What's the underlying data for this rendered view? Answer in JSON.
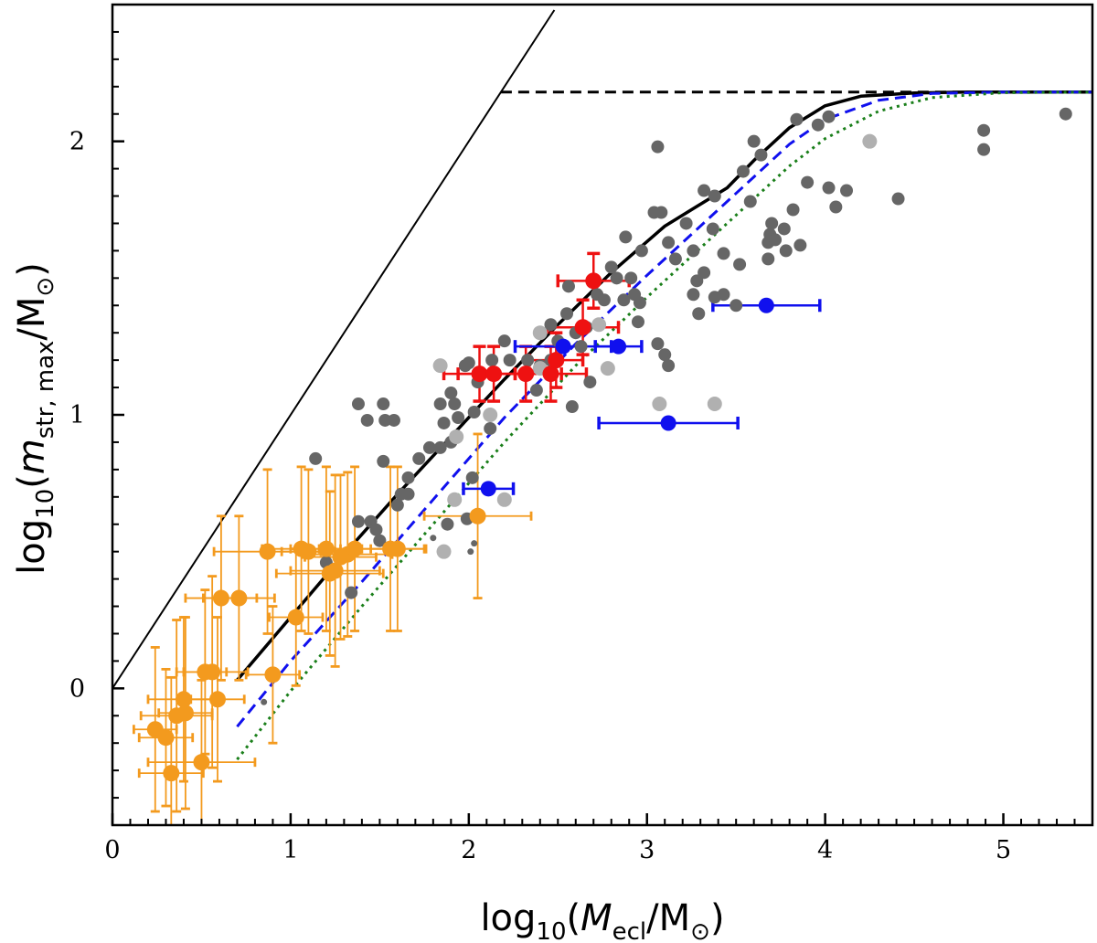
{
  "chart_data": {
    "type": "scatter",
    "title": "",
    "xlabel": {
      "prefix": "log",
      "sub": "10",
      "open": "(",
      "var": "M",
      "varsub": "ecl",
      "slash": "/M",
      "sun": "⊙",
      "close": ")"
    },
    "ylabel": {
      "prefix": "log",
      "sub": "10",
      "open": "(",
      "var": "m",
      "varsub": "str, max",
      "slash": "/M",
      "sun": "⊙",
      "close": ")"
    },
    "xlim": [
      0,
      5.5
    ],
    "ylim": [
      -0.5,
      2.5
    ],
    "xticks": [
      0,
      1,
      2,
      3,
      4,
      5
    ],
    "yticks": [
      0,
      1,
      2
    ],
    "x_minor_step": 0.1,
    "y_minor_step": 0.1,
    "grid": false,
    "legend": "none",
    "colors": {
      "orange": "#f39a1e",
      "red": "#ee1111",
      "blue": "#1010ee",
      "darkgray": "#666666",
      "lightgray": "#b0b0b0",
      "green": "#1a7f1a",
      "black": "#000000"
    },
    "lines": [
      {
        "style": "solid-thin",
        "color": "#000000",
        "x": [
          0,
          2.48
        ],
        "y": [
          0,
          2.48
        ]
      },
      {
        "style": "dashed",
        "color": "#000000",
        "x": [
          2.18,
          5.5
        ],
        "y": [
          2.18,
          2.18
        ]
      },
      {
        "style": "solid-thick",
        "color": "#000000",
        "x": [
          0.7,
          1.0,
          1.3,
          1.6,
          1.9,
          2.2,
          2.5,
          2.8,
          3.1,
          3.3,
          3.45,
          3.6,
          3.8,
          4.0,
          4.2,
          4.5,
          4.8,
          5.1,
          5.5
        ],
        "y": [
          0.03,
          0.26,
          0.49,
          0.71,
          0.92,
          1.13,
          1.33,
          1.52,
          1.69,
          1.77,
          1.83,
          1.93,
          2.05,
          2.13,
          2.165,
          2.177,
          2.18,
          2.18,
          2.18
        ]
      },
      {
        "style": "dashed",
        "color": "#1010ee",
        "x": [
          0.7,
          1.0,
          1.4,
          1.8,
          2.2,
          2.6,
          3.0,
          3.4,
          3.6,
          3.8,
          4.0,
          4.3,
          4.6,
          5.0,
          5.5
        ],
        "y": [
          -0.14,
          0.1,
          0.39,
          0.69,
          0.99,
          1.26,
          1.51,
          1.75,
          1.87,
          1.99,
          2.08,
          2.15,
          2.175,
          2.18,
          2.18
        ]
      },
      {
        "style": "dotted",
        "color": "#1a7f1a",
        "x": [
          0.7,
          1.0,
          1.4,
          1.8,
          2.2,
          2.6,
          3.0,
          3.4,
          3.6,
          3.8,
          4.0,
          4.3,
          4.6,
          5.0,
          5.5
        ],
        "y": [
          -0.26,
          -0.01,
          0.3,
          0.6,
          0.9,
          1.18,
          1.43,
          1.67,
          1.79,
          1.91,
          2.01,
          2.11,
          2.16,
          2.178,
          2.18
        ]
      }
    ],
    "series": [
      {
        "marker": "darkgray",
        "points": [
          [
            1.14,
            0.84
          ],
          [
            1.38,
            1.04
          ],
          [
            1.43,
            0.98
          ],
          [
            1.53,
            0.98
          ],
          [
            1.52,
            1.04
          ],
          [
            1.58,
            0.98
          ],
          [
            1.45,
            0.61
          ],
          [
            1.48,
            0.58
          ],
          [
            1.62,
            0.71
          ],
          [
            1.66,
            0.77
          ],
          [
            1.72,
            0.84
          ],
          [
            1.78,
            0.88
          ],
          [
            1.84,
            1.04
          ],
          [
            1.86,
            0.97
          ],
          [
            1.9,
            1.08
          ],
          [
            1.92,
            1.04
          ],
          [
            1.98,
            1.18
          ],
          [
            2.0,
            1.19
          ],
          [
            2.05,
            1.12
          ],
          [
            2.13,
            1.2
          ],
          [
            2.2,
            1.27
          ],
          [
            2.23,
            1.2
          ],
          [
            2.33,
            1.2
          ],
          [
            2.4,
            1.18
          ],
          [
            2.46,
            1.2
          ],
          [
            2.5,
            1.27
          ],
          [
            2.6,
            1.3
          ],
          [
            2.63,
            1.25
          ],
          [
            2.66,
            1.32
          ],
          [
            2.72,
            1.44
          ],
          [
            2.76,
            1.42
          ],
          [
            2.8,
            1.54
          ],
          [
            2.83,
            1.5
          ],
          [
            2.91,
            1.5
          ],
          [
            2.93,
            1.44
          ],
          [
            2.95,
            1.34
          ],
          [
            2.88,
            1.65
          ],
          [
            2.97,
            1.6
          ],
          [
            3.04,
            1.74
          ],
          [
            3.08,
            1.74
          ],
          [
            3.12,
            1.63
          ],
          [
            3.16,
            1.57
          ],
          [
            3.22,
            1.7
          ],
          [
            3.26,
            1.6
          ],
          [
            3.28,
            1.49
          ],
          [
            3.32,
            1.52
          ],
          [
            3.38,
            1.43
          ],
          [
            3.43,
            1.44
          ],
          [
            3.43,
            1.59
          ],
          [
            3.5,
            1.4
          ],
          [
            3.52,
            1.55
          ],
          [
            3.58,
            1.78
          ],
          [
            3.6,
            2.0
          ],
          [
            3.64,
            1.95
          ],
          [
            3.68,
            1.63
          ],
          [
            3.68,
            1.57
          ],
          [
            3.69,
            1.66
          ],
          [
            3.7,
            1.7
          ],
          [
            3.72,
            1.64
          ],
          [
            3.77,
            1.68
          ],
          [
            3.78,
            1.6
          ],
          [
            3.82,
            1.75
          ],
          [
            3.84,
            2.08
          ],
          [
            3.86,
            1.62
          ],
          [
            3.9,
            1.85
          ],
          [
            3.96,
            2.06
          ],
          [
            4.02,
            2.09
          ],
          [
            4.02,
            1.83
          ],
          [
            4.06,
            1.76
          ],
          [
            4.12,
            1.82
          ],
          [
            4.41,
            1.79
          ],
          [
            4.89,
            2.04
          ],
          [
            4.89,
            1.97
          ],
          [
            5.35,
            2.1
          ],
          [
            3.54,
            1.89
          ],
          [
            3.32,
            1.82
          ],
          [
            3.38,
            1.8
          ],
          [
            3.06,
            1.98
          ],
          [
            2.02,
            0.77
          ],
          [
            2.12,
            0.95
          ],
          [
            2.03,
            1.01
          ],
          [
            3.26,
            1.44
          ],
          [
            3.29,
            1.37
          ],
          [
            3.06,
            1.26
          ],
          [
            3.12,
            1.18
          ],
          [
            2.58,
            1.03
          ],
          [
            1.38,
            0.61
          ],
          [
            1.5,
            0.54
          ],
          [
            1.9,
            0.9
          ],
          [
            1.84,
            0.88
          ],
          [
            1.6,
            0.67
          ],
          [
            2.68,
            1.12
          ],
          [
            1.66,
            0.71
          ],
          [
            1.52,
            0.83
          ],
          [
            1.94,
            0.99
          ],
          [
            1.2,
            0.46
          ],
          [
            1.34,
            0.35
          ],
          [
            2.55,
            1.37
          ],
          [
            2.56,
            1.47
          ],
          [
            2.96,
            1.41
          ],
          [
            3.37,
            1.68
          ],
          [
            2.87,
            1.42
          ],
          [
            2.46,
            1.33
          ],
          [
            3.1,
            1.22
          ],
          [
            1.99,
            0.62
          ],
          [
            2.38,
            1.09
          ],
          [
            1.88,
            0.6
          ]
        ]
      },
      {
        "marker": "darkgray-small",
        "points": [
          [
            2.01,
            0.5
          ],
          [
            2.03,
            0.53
          ],
          [
            0.85,
            -0.05
          ],
          [
            1.8,
            0.55
          ]
        ]
      },
      {
        "marker": "lightgray",
        "points": [
          [
            1.84,
            1.18
          ],
          [
            1.93,
            0.92
          ],
          [
            1.92,
            0.69
          ],
          [
            2.12,
            1.0
          ],
          [
            2.4,
            1.17
          ],
          [
            2.4,
            1.3
          ],
          [
            2.73,
            1.33
          ],
          [
            2.78,
            1.17
          ],
          [
            3.07,
            1.04
          ],
          [
            3.38,
            1.04
          ],
          [
            4.25,
            2.0
          ],
          [
            2.2,
            0.69
          ],
          [
            1.86,
            0.5
          ]
        ]
      },
      {
        "marker": "orange",
        "points": [
          {
            "x": 0.24,
            "y": -0.15,
            "xerr": 0.12,
            "yerr": 0.3
          },
          {
            "x": 0.3,
            "y": -0.18,
            "xerr": 0.15,
            "yerr": 0.25
          },
          {
            "x": 0.33,
            "y": -0.31,
            "xerr": 0.18,
            "yerr": 0.35
          },
          {
            "x": 0.36,
            "y": -0.1,
            "xerr": 0.2,
            "yerr": 0.35
          },
          {
            "x": 0.4,
            "y": -0.04,
            "xerr": 0.2,
            "yerr": 0.3
          },
          {
            "x": 0.41,
            "y": -0.09,
            "xerr": 0.15,
            "yerr": 0.35
          },
          {
            "x": 0.5,
            "y": -0.27,
            "xerr": 0.3,
            "yerr": 0.3
          },
          {
            "x": 0.52,
            "y": 0.06,
            "xerr": 0.12,
            "yerr": 0.3
          },
          {
            "x": 0.56,
            "y": 0.06,
            "xerr": 0.2,
            "yerr": 0.35
          },
          {
            "x": 0.59,
            "y": -0.04,
            "xerr": 0.15,
            "yerr": 0.3
          },
          {
            "x": 0.61,
            "y": 0.33,
            "xerr": 0.2,
            "yerr": 0.3
          },
          {
            "x": 0.71,
            "y": 0.33,
            "xerr": 0.2,
            "yerr": 0.3
          },
          {
            "x": 0.87,
            "y": 0.5,
            "xerr": 0.3,
            "yerr": 0.3
          },
          {
            "x": 0.9,
            "y": 0.05,
            "xerr": 0.15,
            "yerr": 0.25
          },
          {
            "x": 1.03,
            "y": 0.26,
            "xerr": 0.15,
            "yerr": 0.25
          },
          {
            "x": 1.06,
            "y": 0.51,
            "xerr": 0.22,
            "yerr": 0.3
          },
          {
            "x": 1.1,
            "y": 0.5,
            "xerr": 0.15,
            "yerr": 0.3
          },
          {
            "x": 1.2,
            "y": 0.51,
            "xerr": 0.2,
            "yerr": 0.3
          },
          {
            "x": 1.22,
            "y": 0.42,
            "xerr": 0.3,
            "yerr": 0.3
          },
          {
            "x": 1.25,
            "y": 0.43,
            "xerr": 0.25,
            "yerr": 0.35
          },
          {
            "x": 1.28,
            "y": 0.48,
            "xerr": 0.2,
            "yerr": 0.3
          },
          {
            "x": 1.32,
            "y": 0.49,
            "xerr": 0.25,
            "yerr": 0.3
          },
          {
            "x": 1.36,
            "y": 0.51,
            "xerr": 0.2,
            "yerr": 0.3
          },
          {
            "x": 1.56,
            "y": 0.51,
            "xerr": 0.2,
            "yerr": 0.3
          },
          {
            "x": 1.6,
            "y": 0.51,
            "xerr": 0.15,
            "yerr": 0.3
          },
          {
            "x": 2.05,
            "y": 0.63,
            "xerr": 0.3,
            "yerr": 0.3
          }
        ]
      },
      {
        "marker": "red",
        "points": [
          {
            "x": 2.06,
            "y": 1.15,
            "xerr": 0.2,
            "yerr": 0.1
          },
          {
            "x": 2.14,
            "y": 1.15,
            "xerr": 0.2,
            "yerr": 0.1
          },
          {
            "x": 2.32,
            "y": 1.15,
            "xerr": 0.2,
            "yerr": 0.1
          },
          {
            "x": 2.46,
            "y": 1.15,
            "xerr": 0.2,
            "yerr": 0.1
          },
          {
            "x": 2.49,
            "y": 1.2,
            "xerr": 0.15,
            "yerr": 0.1
          },
          {
            "x": 2.64,
            "y": 1.32,
            "xerr": 0.2,
            "yerr": 0.1
          },
          {
            "x": 2.7,
            "y": 1.49,
            "xerr": 0.2,
            "yerr": 0.1
          }
        ]
      },
      {
        "marker": "blue",
        "points": [
          {
            "x": 2.11,
            "y": 0.73,
            "xerr": 0.14,
            "yerr": 0
          },
          {
            "x": 2.53,
            "y": 1.25,
            "xerr": 0.27,
            "yerr": 0
          },
          {
            "x": 2.84,
            "y": 1.25,
            "xerr": 0.13,
            "yerr": 0
          },
          {
            "x": 3.12,
            "y": 0.97,
            "xerr": 0.39,
            "yerr": 0
          },
          {
            "x": 3.67,
            "y": 1.4,
            "xerr": 0.3,
            "yerr": 0
          }
        ]
      }
    ]
  }
}
